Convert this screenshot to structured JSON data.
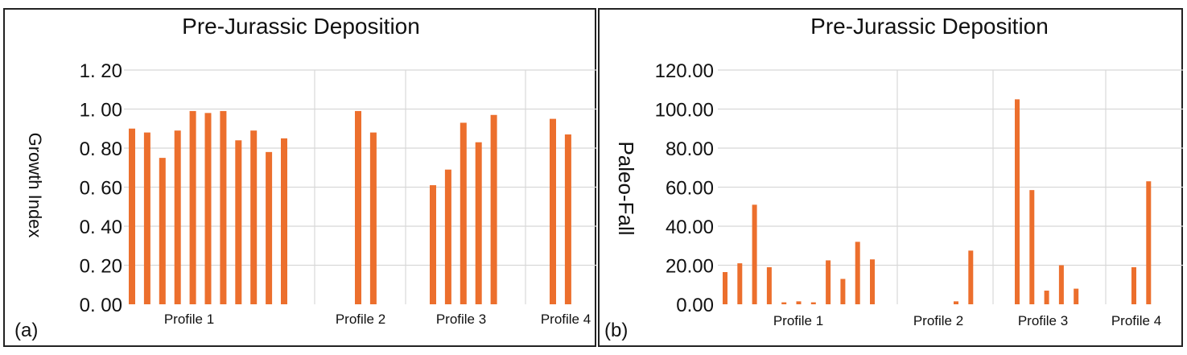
{
  "chart_data": [
    {
      "type": "bar",
      "panel_label": "(a)",
      "title": "Pre-Jurassic Deposition",
      "ylabel": "Growth Index",
      "xlabel": "",
      "ylim": [
        0,
        1.2
      ],
      "yticks": [
        "0. 00",
        "0. 20",
        "0. 40",
        "0. 60",
        "0. 80",
        "1. 00",
        "1. 20"
      ],
      "grid": true,
      "bar_color": "#ec6f2d",
      "groups": [
        {
          "name": "Profile 1",
          "values": [
            0.9,
            0.88,
            0.75,
            0.89,
            0.99,
            0.98,
            0.99,
            0.84,
            0.89,
            0.78,
            0.85
          ]
        },
        {
          "name": "Profile 2",
          "values": [
            0.99,
            0.88
          ]
        },
        {
          "name": "Profile 3",
          "values": [
            0.61,
            0.69,
            0.93,
            0.83,
            0.97
          ]
        },
        {
          "name": "Profile 4",
          "values": [
            0.95,
            0.87
          ]
        }
      ]
    },
    {
      "type": "bar",
      "panel_label": "(b)",
      "title": "Pre-Jurassic Deposition",
      "ylabel": "Paleo-Fall",
      "xlabel": "",
      "ylim": [
        0,
        120
      ],
      "yticks": [
        "0.00",
        "20.00",
        "40.00",
        "60.00",
        "80.00",
        "100.00",
        "120.00"
      ],
      "grid": true,
      "bar_color": "#ec6f2d",
      "groups": [
        {
          "name": "Profile 1",
          "values": [
            16.5,
            21,
            51,
            19,
            1,
            1.5,
            1,
            22.5,
            13,
            32,
            23
          ]
        },
        {
          "name": "Profile 2",
          "values": [
            1.5,
            27.5
          ]
        },
        {
          "name": "Profile 3",
          "values": [
            105,
            58.5,
            7,
            20,
            8
          ]
        },
        {
          "name": "Profile 4",
          "values": [
            19,
            63
          ]
        }
      ]
    }
  ]
}
